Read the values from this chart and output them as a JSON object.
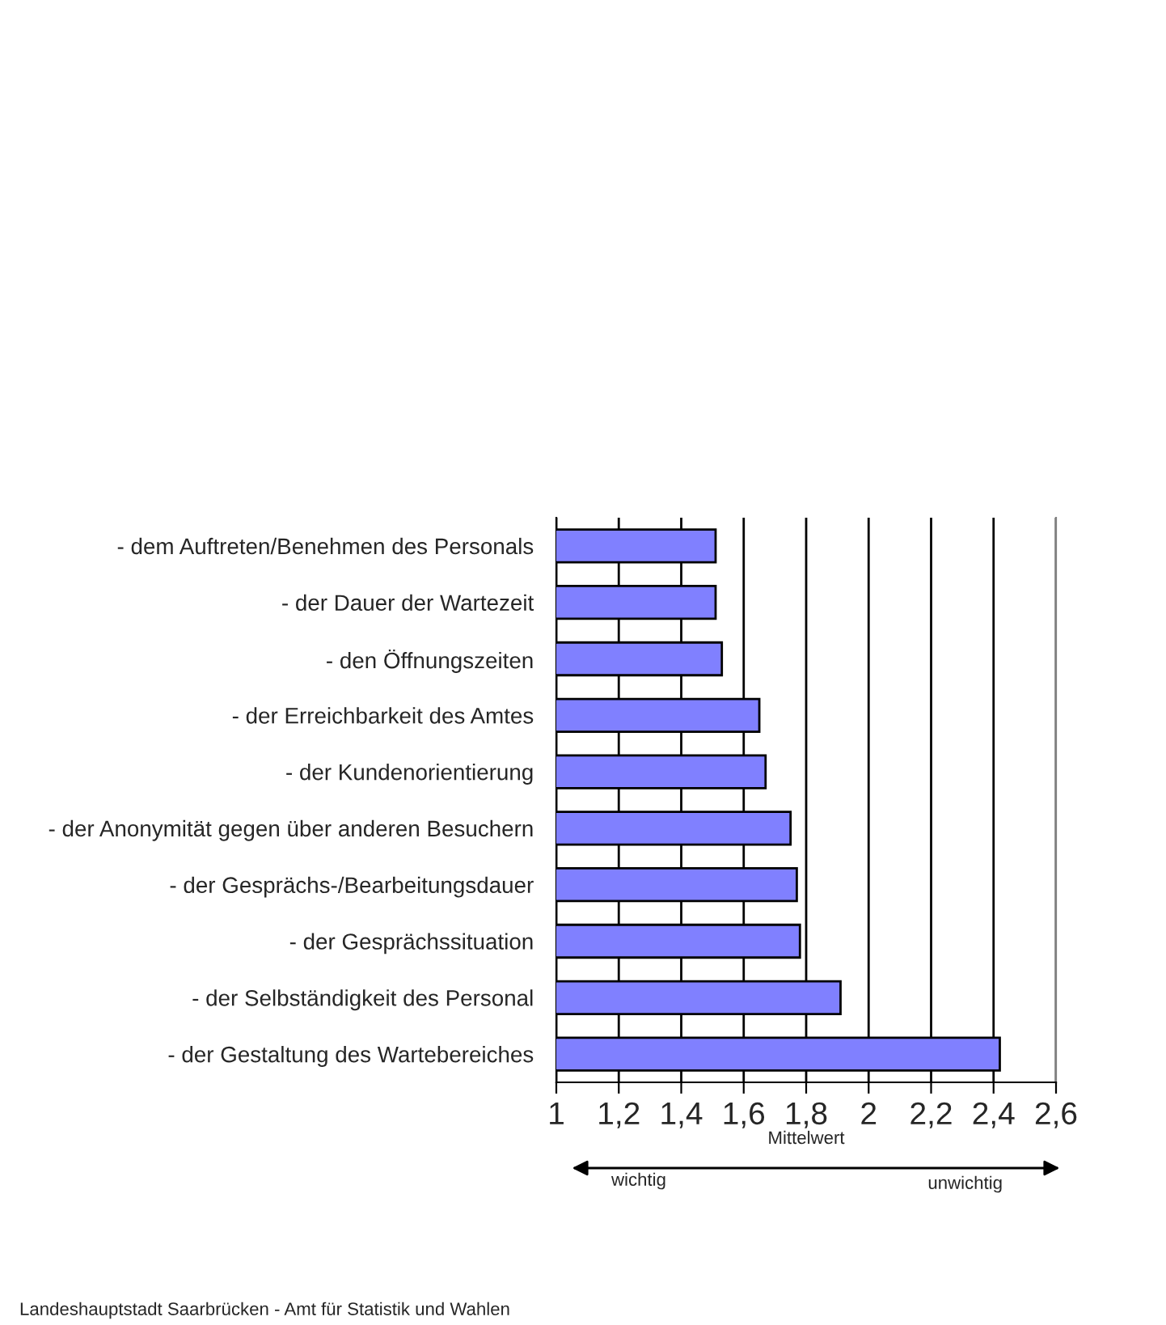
{
  "chart_data": {
    "type": "bar",
    "orientation": "horizontal",
    "categories": [
      "- dem Auftreten/Benehmen des Personals",
      "- der Dauer der Wartezeit",
      "- den Öffnungszeiten",
      "- der Erreichbarkeit des Amtes",
      "- der Kundenorientierung",
      "- der Anonymität gegen über anderen Besuchern",
      "- der Gesprächs-/Bearbeitungsdauer",
      "- der Gesprächssituation",
      "- der Selbständigkeit des Personal",
      "- der Gestaltung des Wartebereiches"
    ],
    "values": [
      1.51,
      1.51,
      1.53,
      1.65,
      1.67,
      1.75,
      1.77,
      1.78,
      1.91,
      2.42
    ],
    "color": "#8080ff",
    "xlim": [
      1,
      2.6
    ],
    "xticks": [
      {
        "value": 1,
        "label": "1"
      },
      {
        "value": 1.2,
        "label": "1,2"
      },
      {
        "value": 1.4,
        "label": "1,4"
      },
      {
        "value": 1.6,
        "label": "1,6"
      },
      {
        "value": 1.8,
        "label": "1,8"
      },
      {
        "value": 2,
        "label": "2"
      },
      {
        "value": 2.2,
        "label": "2,2"
      },
      {
        "value": 2.4,
        "label": "2,4"
      },
      {
        "value": 2.6,
        "label": "2,6"
      }
    ],
    "xlabel": "Mittelwert",
    "grid": "x",
    "legend": false,
    "annotations": [
      "wichtig",
      "unwichtig",
      "Landeshauptstadt Saarbrücken - Amt für Statistik und Wahlen"
    ]
  }
}
